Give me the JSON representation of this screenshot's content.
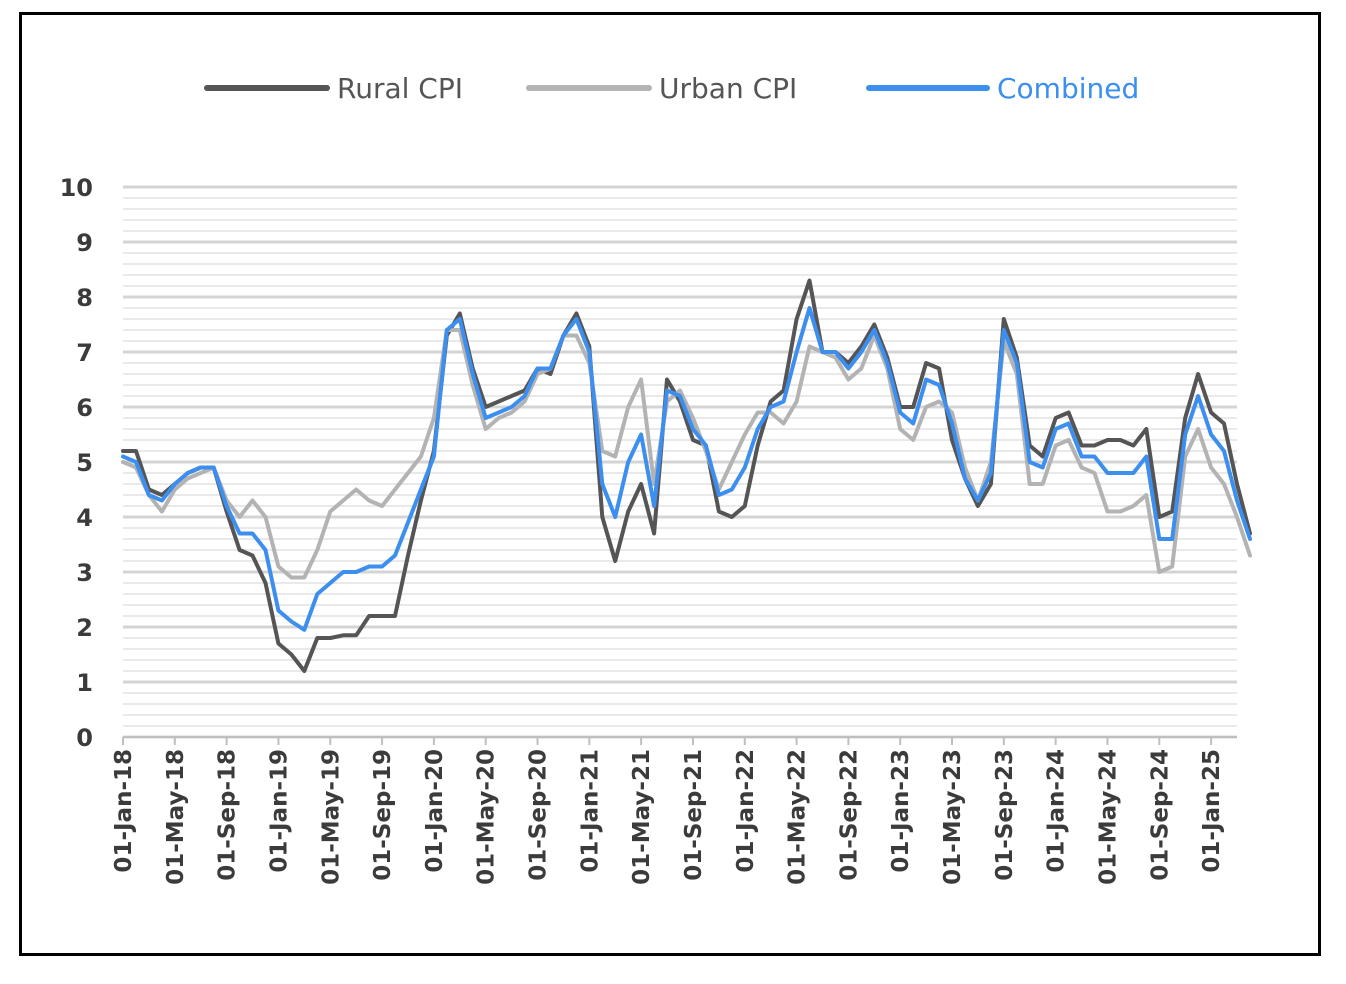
{
  "chart_data": {
    "type": "line",
    "title": "",
    "xlabel": "",
    "ylabel": "",
    "ylim": [
      0,
      10
    ],
    "yticks": [
      "0",
      "1",
      "2",
      "3",
      "4",
      "5",
      "6",
      "7",
      "8",
      "9",
      "10"
    ],
    "x_start": "2018-01",
    "x_end": "2025-03",
    "xtick_labels": [
      {
        "month": "2018-01",
        "label": "01-Jan-18"
      },
      {
        "month": "2018-05",
        "label": "01-May-18"
      },
      {
        "month": "2018-09",
        "label": "01-Sep-18"
      },
      {
        "month": "2019-01",
        "label": "01-Jan-19"
      },
      {
        "month": "2019-05",
        "label": "01-May-19"
      },
      {
        "month": "2019-09",
        "label": "01-Sep-19"
      },
      {
        "month": "2020-01",
        "label": "01-Jan-20"
      },
      {
        "month": "2020-05",
        "label": "01-May-20"
      },
      {
        "month": "2020-09",
        "label": "01-Sep-20"
      },
      {
        "month": "2021-01",
        "label": "01-Jan-21"
      },
      {
        "month": "2021-05",
        "label": "01-May-21"
      },
      {
        "month": "2021-09",
        "label": "01-Sep-21"
      },
      {
        "month": "2022-01",
        "label": "01-Jan-22"
      },
      {
        "month": "2022-05",
        "label": "01-May-22"
      },
      {
        "month": "2022-09",
        "label": "01-Sep-22"
      },
      {
        "month": "2023-01",
        "label": "01-Jan-23"
      },
      {
        "month": "2023-05",
        "label": "01-May-23"
      },
      {
        "month": "2023-09",
        "label": "01-Sep-23"
      },
      {
        "month": "2024-01",
        "label": "01-Jan-24"
      },
      {
        "month": "2024-05",
        "label": "01-May-24"
      },
      {
        "month": "2024-09",
        "label": "01-Sep-24"
      },
      {
        "month": "2025-01",
        "label": "01-Jan-25"
      }
    ],
    "grid": true,
    "legend_position": "top",
    "series": [
      {
        "name": "Rural CPI",
        "color": "#555555",
        "values": [
          5.2,
          5.2,
          4.5,
          4.4,
          4.6,
          4.8,
          4.9,
          4.9,
          4.1,
          3.4,
          3.3,
          2.8,
          1.7,
          1.5,
          1.2,
          1.8,
          1.8,
          1.85,
          1.85,
          2.2,
          2.2,
          2.2,
          3.3,
          4.3,
          5.2,
          7.3,
          7.7,
          6.7,
          6.0,
          6.1,
          6.2,
          6.3,
          6.7,
          6.6,
          7.3,
          7.7,
          7.1,
          4.0,
          3.2,
          4.1,
          4.6,
          3.7,
          6.5,
          6.1,
          5.4,
          5.3,
          4.1,
          4.0,
          4.2,
          5.3,
          6.1,
          6.3,
          7.6,
          8.3,
          7.0,
          7.0,
          6.8,
          7.1,
          7.5,
          6.9,
          6.0,
          6.0,
          6.8,
          6.7,
          5.4,
          4.7,
          4.2,
          4.6,
          7.6,
          6.9,
          5.3,
          5.1,
          5.8,
          5.9,
          5.3,
          5.3,
          5.4,
          5.4,
          5.3,
          5.6,
          4.0,
          4.1,
          5.8,
          6.6,
          5.9,
          5.7,
          4.6,
          3.7
        ]
      },
      {
        "name": "Urban CPI",
        "color": "#b3b3b3",
        "values": [
          5.0,
          4.9,
          4.4,
          4.1,
          4.5,
          4.7,
          4.8,
          4.9,
          4.3,
          4.0,
          4.3,
          4.0,
          3.1,
          2.9,
          2.9,
          3.4,
          4.1,
          4.3,
          4.5,
          4.3,
          4.2,
          4.5,
          4.8,
          5.1,
          5.8,
          7.4,
          7.4,
          6.4,
          5.6,
          5.8,
          5.9,
          6.1,
          6.6,
          6.7,
          7.3,
          7.3,
          6.8,
          5.2,
          5.1,
          6.0,
          6.5,
          4.6,
          6.1,
          6.3,
          5.8,
          5.2,
          4.5,
          5.0,
          5.5,
          5.9,
          5.9,
          5.7,
          6.1,
          7.1,
          7.0,
          6.9,
          6.5,
          6.7,
          7.3,
          6.7,
          5.6,
          5.4,
          6.0,
          6.1,
          5.9,
          4.9,
          4.3,
          5.0,
          7.2,
          6.6,
          4.6,
          4.6,
          5.3,
          5.4,
          4.9,
          4.8,
          4.1,
          4.1,
          4.2,
          4.4,
          3.0,
          3.1,
          5.1,
          5.6,
          4.9,
          4.6,
          4.0,
          3.3
        ]
      },
      {
        "name": "Combined",
        "color": "#3d8fef",
        "values": [
          5.1,
          5.0,
          4.4,
          4.3,
          4.6,
          4.8,
          4.9,
          4.9,
          4.2,
          3.7,
          3.7,
          3.4,
          2.3,
          2.1,
          1.95,
          2.6,
          2.8,
          3.0,
          3.0,
          3.1,
          3.1,
          3.3,
          3.9,
          4.5,
          5.1,
          7.4,
          7.6,
          6.6,
          5.8,
          5.9,
          6.0,
          6.2,
          6.7,
          6.7,
          7.3,
          7.6,
          7.0,
          4.6,
          4.0,
          5.0,
          5.5,
          4.2,
          6.3,
          6.2,
          5.6,
          5.3,
          4.4,
          4.5,
          4.9,
          5.6,
          6.0,
          6.1,
          7.0,
          7.8,
          7.0,
          7.0,
          6.7,
          7.0,
          7.4,
          6.8,
          5.9,
          5.7,
          6.5,
          6.4,
          5.7,
          4.7,
          4.3,
          4.8,
          7.4,
          6.8,
          5.0,
          4.9,
          5.6,
          5.7,
          5.1,
          5.1,
          4.8,
          4.8,
          4.8,
          5.1,
          3.6,
          3.6,
          5.5,
          6.2,
          5.5,
          5.2,
          4.3,
          3.6
        ]
      }
    ]
  }
}
